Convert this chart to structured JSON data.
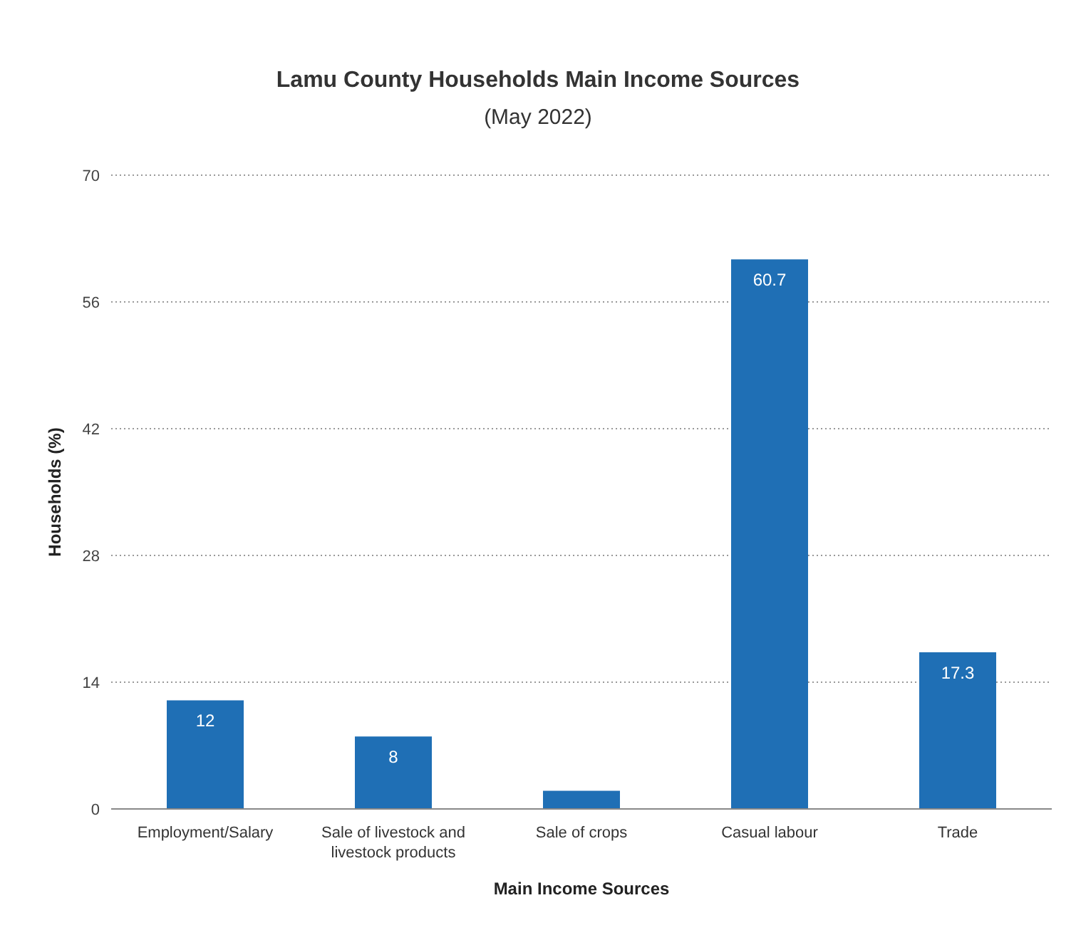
{
  "chart_data": {
    "type": "bar",
    "title": "Lamu County Households Main Income Sources",
    "subtitle": "(May 2022)",
    "xlabel": "Main Income Sources",
    "ylabel": "Households (%)",
    "categories": [
      "Employment/Salary",
      "Sale of livestock and livestock products",
      "Sale of crops",
      "Casual labour",
      "Trade"
    ],
    "values": [
      12,
      8,
      2,
      60.7,
      17.3
    ],
    "value_labels": [
      "12",
      "8",
      null,
      "60.7",
      "17.3"
    ],
    "color": "#1f6fb5",
    "ylim": [
      0,
      70
    ],
    "yticks": [
      0,
      14,
      28,
      42,
      56,
      70
    ],
    "grid": "y"
  }
}
